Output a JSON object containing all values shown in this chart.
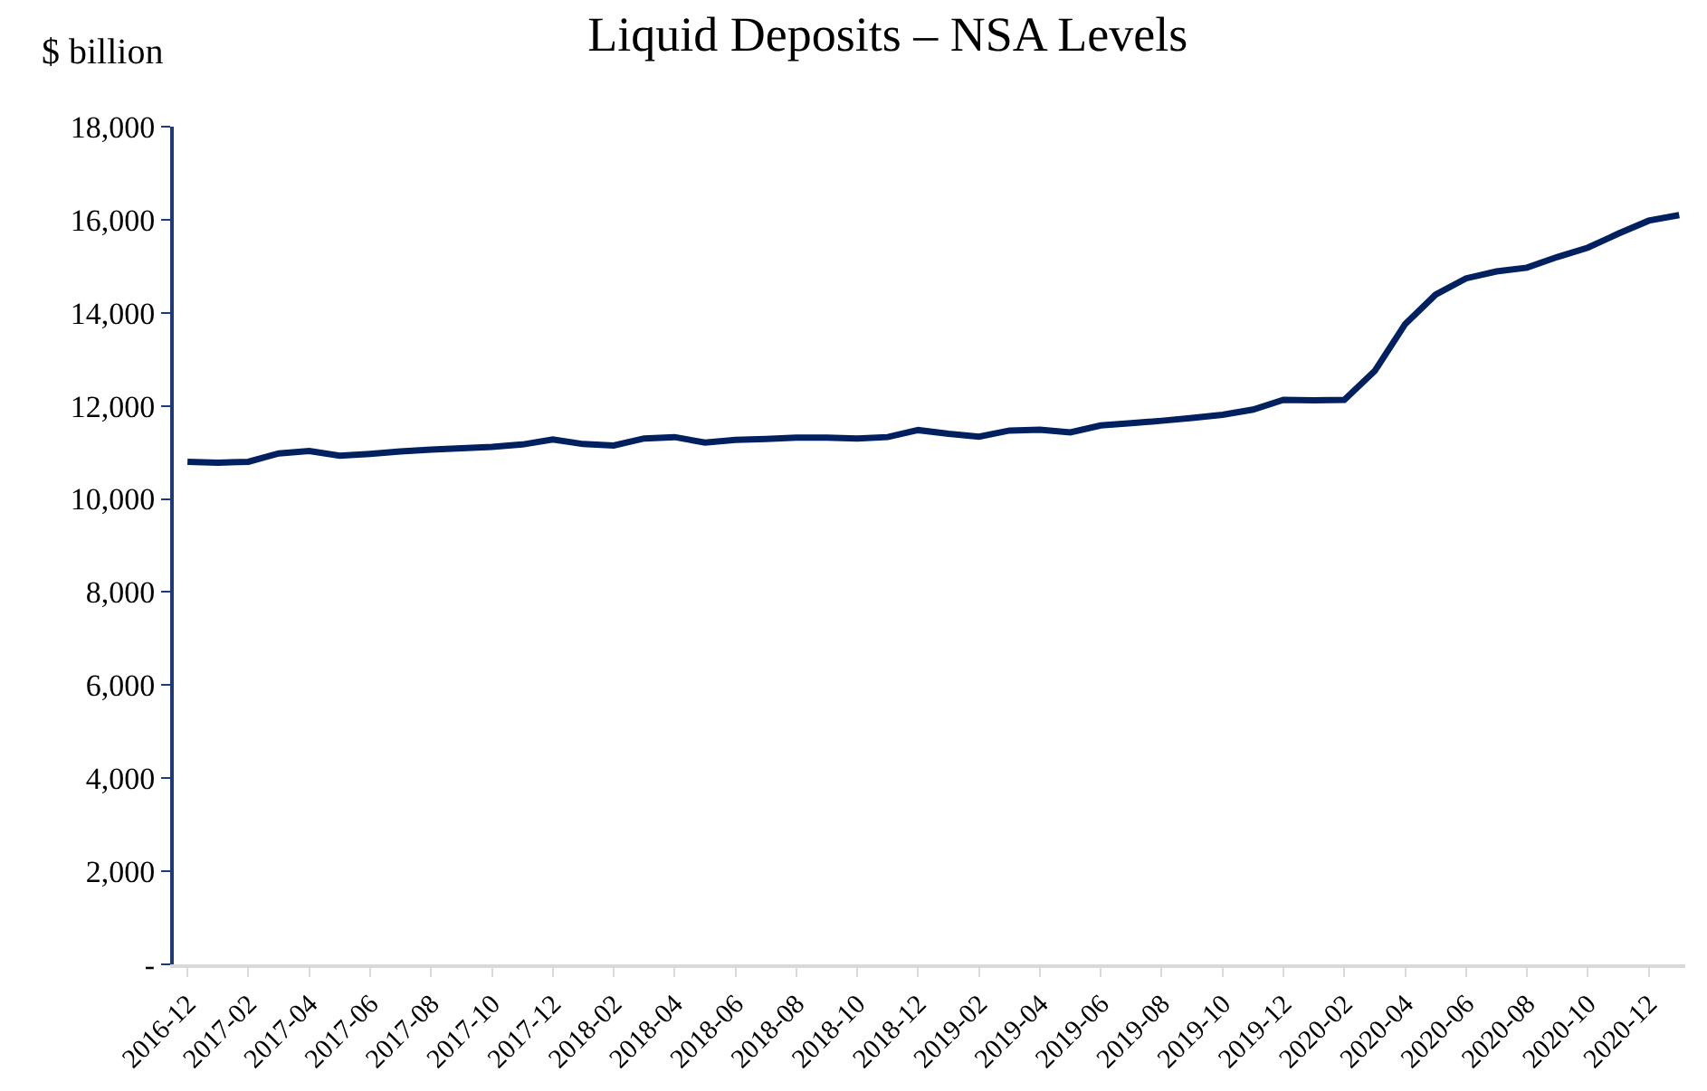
{
  "chart_data": {
    "type": "line",
    "title": "Liquid Deposits – NSA Levels",
    "ylabel": "$ billion",
    "categories": [
      "2016-12",
      null,
      "2017-02",
      null,
      "2017-04",
      null,
      "2017-06",
      null,
      "2017-08",
      null,
      "2017-10",
      null,
      "2017-12",
      null,
      "2018-02",
      null,
      "2018-04",
      null,
      "2018-06",
      null,
      "2018-08",
      null,
      "2018-10",
      null,
      "2018-12",
      null,
      "2019-02",
      null,
      "2019-04",
      null,
      "2019-06",
      null,
      "2019-08",
      null,
      "2019-10",
      null,
      "2019-12",
      null,
      "2020-02",
      null,
      "2020-04",
      null,
      "2020-06",
      null,
      "2020-08",
      null,
      "2020-10",
      null,
      "2020-12",
      null
    ],
    "series": [
      {
        "color": "#002060",
        "values": [
          10800,
          10780,
          10800,
          10980,
          11030,
          10930,
          10970,
          11020,
          11060,
          11090,
          11120,
          11170,
          11280,
          11180,
          11150,
          11300,
          11330,
          11210,
          11270,
          11290,
          11320,
          11320,
          11300,
          11330,
          11480,
          11400,
          11340,
          11470,
          11490,
          11430,
          11580,
          11630,
          11680,
          11740,
          11810,
          11920,
          12130,
          12120,
          12130,
          12750,
          13760,
          14390,
          14740,
          14890,
          14970,
          15200,
          15400,
          15700,
          15980,
          16100
        ]
      }
    ],
    "ylim": [
      0,
      18000
    ],
    "yticks": [
      {
        "value": 0,
        "label": "-"
      },
      {
        "value": 2000,
        "label": "2,000"
      },
      {
        "value": 4000,
        "label": "4,000"
      },
      {
        "value": 6000,
        "label": "6,000"
      },
      {
        "value": 8000,
        "label": "8,000"
      },
      {
        "value": 10000,
        "label": "10,000"
      },
      {
        "value": 12000,
        "label": "12,000"
      },
      {
        "value": 14000,
        "label": "14,000"
      },
      {
        "value": 16000,
        "label": "16,000"
      },
      {
        "value": 18000,
        "label": "18,000"
      }
    ],
    "grid": false,
    "marker": "none",
    "line_style": "solid"
  }
}
